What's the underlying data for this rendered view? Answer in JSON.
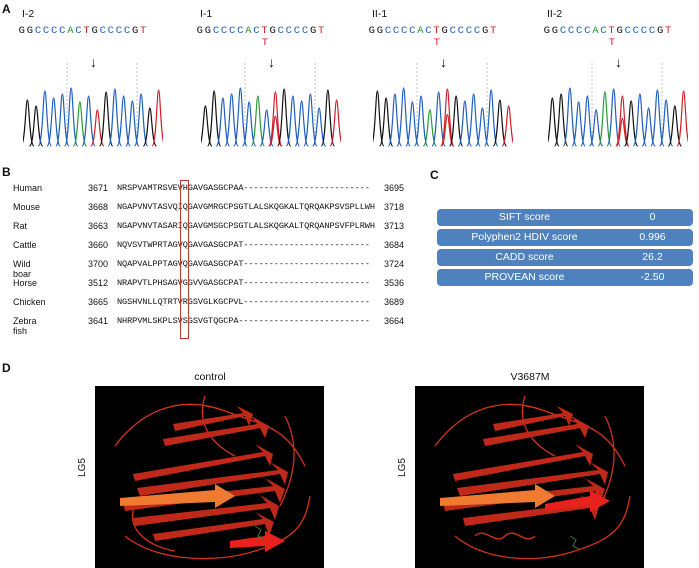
{
  "panels": {
    "a": "A",
    "b": "B",
    "c": "C",
    "d": "D"
  },
  "panel_a": {
    "samples": [
      {
        "id": "I-2",
        "sequence": "GGCCCCACTGCCCCGT",
        "variant": ""
      },
      {
        "id": "I-1",
        "sequence": "GGCCCCACTGCCCCGT",
        "variant": "T"
      },
      {
        "id": "II-1",
        "sequence": "GGCCCCACTGCCCCGT",
        "variant": "T"
      },
      {
        "id": "II-2",
        "sequence": "GGCCCCACTGCCCCGT",
        "variant": "T"
      }
    ],
    "arrow": "↓",
    "base_colors": {
      "G": "#111111",
      "C": "#1f5fbf",
      "A": "#2a9a3a",
      "T": "#d0202a"
    }
  },
  "panel_b": {
    "rows": [
      {
        "species": "Human",
        "start": "3671",
        "seq": "NRSPVAMTRSVEVHGAVGASGCPAA-------------------------",
        "end": "3695"
      },
      {
        "species": "Mouse",
        "start": "3668",
        "seq": "NGAPVNVTASVQIQGAVGMRGCPSGTLALSKQGKALTQRQAKPSVSPLLWH",
        "end": "3718"
      },
      {
        "species": "Rat",
        "start": "3663",
        "seq": "NGAPVNVTASARIQGAVGMSGCPSGTLALSKQGKALTQRQANPSVFPLRWH",
        "end": "3713"
      },
      {
        "species": "Cattle",
        "start": "3660",
        "seq": "NQVSVTWPRTAGVQGAVGASGCPAT-------------------------",
        "end": "3684"
      },
      {
        "species": "Wild boar",
        "start": "3700",
        "seq": "NQAPVALPPTAGVQGAVGASGCPAT-------------------------",
        "end": "3724"
      },
      {
        "species": "Horse",
        "start": "3512",
        "seq": "NRAPVTLPHSAGVGGVVGASGCPAT-------------------------",
        "end": "3536"
      },
      {
        "species": "Chicken",
        "start": "3665",
        "seq": "NGSHVNLLQTRTVRGSVGLKGCPVL-------------------------",
        "end": "3689"
      },
      {
        "species": "Zebra fish",
        "start": "3641",
        "seq": "NHRPVMLSKPLSVSGSVGTQGCPA--------------------------",
        "end": "3664"
      }
    ]
  },
  "panel_c": {
    "scores": [
      {
        "label": "SIFT score",
        "value": "0"
      },
      {
        "label": "Polyphen2 HDIV score",
        "value": "0.996"
      },
      {
        "label": "CADD score",
        "value": "26.2"
      },
      {
        "label": "PROVEAN score",
        "value": "-2.50"
      }
    ],
    "color": "#4f81bd"
  },
  "panel_d": {
    "left": {
      "title": "control",
      "axis_label": "LG5"
    },
    "right": {
      "title": "V3687M",
      "axis_label": "LG5"
    }
  }
}
